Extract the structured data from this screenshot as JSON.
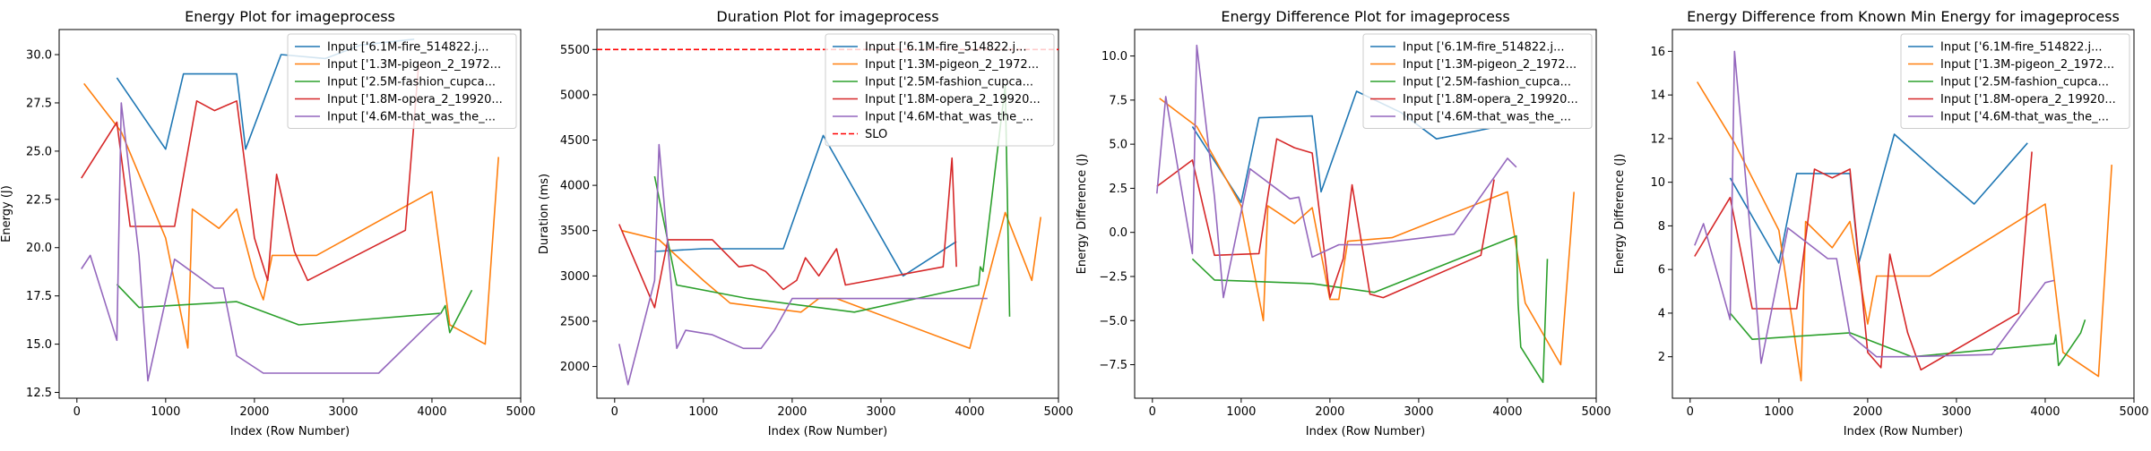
{
  "colors": {
    "series": [
      "#1f77b4",
      "#ff7f0e",
      "#2ca02c",
      "#d62728",
      "#9467bd"
    ],
    "slo": "#ff0000"
  },
  "chart_data": [
    {
      "type": "line",
      "title": "Energy Plot for imageprocess",
      "xlabel": "Index (Row Number)",
      "ylabel": "Energy (J)",
      "xlim": [
        -200,
        5000
      ],
      "ylim": [
        12.2,
        31.3
      ],
      "xticks": [
        0,
        1000,
        2000,
        3000,
        4000,
        5000
      ],
      "xtick_labels": [
        "0",
        "1000",
        "2000",
        "3000",
        "4000",
        "5000"
      ],
      "yticks": [
        12.5,
        15.0,
        17.5,
        20.0,
        22.5,
        25.0,
        27.5,
        30.0
      ],
      "ytick_labels": [
        "12.5",
        "15.0",
        "17.5",
        "20.0",
        "22.5",
        "25.0",
        "27.5",
        "30.0"
      ],
      "legend": "top-right",
      "series": [
        {
          "name": "Input ['6.1M-fire_514822.j...",
          "x": [
            450,
            1000,
            1200,
            1800,
            1900,
            2300,
            2800,
            3200,
            3800
          ],
          "y": [
            28.8,
            25.1,
            29.0,
            29.0,
            25.1,
            30.0,
            29.8,
            30.5,
            30.8
          ]
        },
        {
          "name": "Input ['1.3M-pigeon_2_1972...",
          "x": [
            80,
            500,
            1000,
            1250,
            1300,
            1600,
            1800,
            2000,
            2100,
            2200,
            2700,
            4000,
            4200,
            4600,
            4750
          ],
          "y": [
            28.5,
            26.0,
            20.5,
            14.8,
            22.0,
            21.0,
            22.0,
            18.5,
            17.3,
            19.6,
            19.6,
            22.9,
            16.0,
            15.0,
            24.7
          ]
        },
        {
          "name": "Input ['2.5M-fashion_cupca...",
          "x": [
            450,
            700,
            1800,
            2500,
            4100,
            4150,
            4200,
            4450
          ],
          "y": [
            18.1,
            16.9,
            17.2,
            16.0,
            16.6,
            17.0,
            15.6,
            17.8
          ]
        },
        {
          "name": "Input ['1.8M-opera_2_19920...",
          "x": [
            50,
            450,
            600,
            1100,
            1350,
            1550,
            1800,
            2000,
            2150,
            2250,
            2450,
            2600,
            3700,
            3850
          ],
          "y": [
            23.6,
            26.5,
            21.1,
            21.1,
            27.6,
            27.1,
            27.6,
            20.5,
            18.3,
            23.8,
            19.8,
            18.3,
            20.9,
            29.5
          ]
        },
        {
          "name": "Input ['4.6M-that_was_the_...",
          "x": [
            50,
            150,
            450,
            500,
            700,
            800,
            1100,
            1550,
            1650,
            1800,
            2100,
            2400,
            3400,
            4000,
            4100
          ],
          "y": [
            18.9,
            19.6,
            15.2,
            27.5,
            19.6,
            13.1,
            19.4,
            17.9,
            17.9,
            14.4,
            13.5,
            13.5,
            13.5,
            16.2,
            16.6
          ]
        }
      ]
    },
    {
      "type": "line",
      "title": "Duration Plot for imageprocess",
      "xlabel": "Index (Row Number)",
      "ylabel": "Duration (ms)",
      "xlim": [
        -200,
        5000
      ],
      "ylim": [
        1650,
        5720
      ],
      "xticks": [
        0,
        1000,
        2000,
        3000,
        4000,
        5000
      ],
      "xtick_labels": [
        "0",
        "1000",
        "2000",
        "3000",
        "4000",
        "5000"
      ],
      "yticks": [
        2000,
        2500,
        3000,
        3500,
        4000,
        4500,
        5000,
        5500
      ],
      "ytick_labels": [
        "2000",
        "2500",
        "3000",
        "3500",
        "4000",
        "4500",
        "5000",
        "5500"
      ],
      "legend": "top-right",
      "slo": {
        "name": "SLO",
        "y": 5500
      },
      "series": [
        {
          "name": "Input ['6.1M-fire_514822.j...",
          "x": [
            450,
            1000,
            1900,
            2350,
            3250,
            3850
          ],
          "y": [
            3270,
            3300,
            3300,
            4550,
            3000,
            3380
          ]
        },
        {
          "name": "Input ['1.3M-pigeon_2_1972...",
          "x": [
            80,
            500,
            1000,
            1300,
            1700,
            2100,
            2300,
            2500,
            4000,
            4400,
            4700,
            4800
          ],
          "y": [
            3500,
            3400,
            2950,
            2700,
            2650,
            2600,
            2750,
            2750,
            2200,
            3700,
            2950,
            3650
          ]
        },
        {
          "name": "Input ['2.5M-fashion_cupca...",
          "x": [
            450,
            700,
            1500,
            2700,
            4100,
            4120,
            4150,
            4400,
            4450
          ],
          "y": [
            4100,
            2900,
            2750,
            2600,
            2900,
            3100,
            3050,
            5100,
            2550
          ]
        },
        {
          "name": "Input ['1.8M-opera_2_19920...",
          "x": [
            50,
            450,
            600,
            1100,
            1400,
            1550,
            1700,
            1900,
            2050,
            2150,
            2300,
            2500,
            2600,
            3700,
            3800,
            3850
          ],
          "y": [
            3570,
            2650,
            3400,
            3400,
            3100,
            3120,
            3050,
            2850,
            2950,
            3200,
            3000,
            3300,
            2900,
            3100,
            4300,
            3100
          ]
        },
        {
          "name": "Input ['4.6M-that_was_the_...",
          "x": [
            50,
            150,
            450,
            500,
            700,
            800,
            1100,
            1450,
            1650,
            1800,
            2000,
            2200,
            3400,
            4200
          ],
          "y": [
            2250,
            1800,
            2950,
            4450,
            2200,
            2400,
            2350,
            2200,
            2200,
            2400,
            2750,
            2750,
            2750,
            2750
          ]
        }
      ]
    },
    {
      "type": "line",
      "title": "Energy Difference Plot for imageprocess",
      "xlabel": "Index (Row Number)",
      "ylabel": "Energy Difference (J)",
      "xlim": [
        -200,
        5000
      ],
      "ylim": [
        -9.4,
        11.5
      ],
      "xticks": [
        0,
        1000,
        2000,
        3000,
        4000,
        5000
      ],
      "xtick_labels": [
        "0",
        "1000",
        "2000",
        "3000",
        "4000",
        "5000"
      ],
      "yticks": [
        -7.5,
        -5.0,
        -2.5,
        0.0,
        2.5,
        5.0,
        7.5,
        10.0
      ],
      "ytick_labels": [
        "−7.5",
        "−5.0",
        "−2.5",
        "0.0",
        "2.5",
        "5.0",
        "7.5",
        "10.0"
      ],
      "legend": "top-right",
      "series": [
        {
          "name": "Input ['6.1M-fire_514822.j...",
          "x": [
            450,
            1000,
            1200,
            1800,
            1900,
            2300,
            2800,
            3200,
            3800
          ],
          "y": [
            6.0,
            1.7,
            6.5,
            6.6,
            2.3,
            8.0,
            6.8,
            5.3,
            5.9
          ]
        },
        {
          "name": "Input ['1.3M-pigeon_2_1972...",
          "x": [
            80,
            500,
            1000,
            1250,
            1300,
            1600,
            1800,
            2000,
            2100,
            2200,
            2700,
            4000,
            4200,
            4600,
            4750
          ],
          "y": [
            7.6,
            6.0,
            1.5,
            -5.0,
            1.5,
            0.5,
            1.4,
            -3.8,
            -3.8,
            -0.5,
            -0.3,
            2.3,
            -4.0,
            -7.5,
            2.3
          ]
        },
        {
          "name": "Input ['2.5M-fashion_cupca...",
          "x": [
            450,
            700,
            1800,
            2500,
            4100,
            4120,
            4150,
            4400,
            4450
          ],
          "y": [
            -1.5,
            -2.7,
            -2.9,
            -3.4,
            -0.2,
            -4.0,
            -6.5,
            -8.5,
            -1.5
          ]
        },
        {
          "name": "Input ['1.8M-opera_2_19920...",
          "x": [
            50,
            450,
            700,
            1200,
            1400,
            1600,
            1800,
            2000,
            2150,
            2250,
            2450,
            2600,
            3700,
            3850
          ],
          "y": [
            2.6,
            4.1,
            -1.3,
            -1.2,
            5.3,
            4.8,
            4.5,
            -3.7,
            -1.5,
            2.7,
            -3.5,
            -3.7,
            -1.3,
            3.0
          ]
        },
        {
          "name": "Input ['4.6M-that_was_the_...",
          "x": [
            50,
            150,
            450,
            500,
            700,
            800,
            1100,
            1550,
            1650,
            1800,
            2100,
            2400,
            3400,
            4000,
            4100
          ],
          "y": [
            2.2,
            7.7,
            -1.2,
            10.6,
            2.0,
            -3.7,
            3.6,
            1.9,
            2.0,
            -1.4,
            -0.7,
            -0.7,
            -0.1,
            4.2,
            3.7
          ]
        }
      ]
    },
    {
      "type": "line",
      "title": "Energy Difference from Known Min Energy for imageprocess",
      "xlabel": "Index (Row Number)",
      "ylabel": "Energy Difference (J)",
      "xlim": [
        -200,
        5000
      ],
      "ylim": [
        0.1,
        17.0
      ],
      "xticks": [
        0,
        1000,
        2000,
        3000,
        4000,
        5000
      ],
      "xtick_labels": [
        "0",
        "1000",
        "2000",
        "3000",
        "4000",
        "5000"
      ],
      "yticks": [
        2,
        4,
        6,
        8,
        10,
        12,
        14,
        16
      ],
      "ytick_labels": [
        "2",
        "4",
        "6",
        "8",
        "10",
        "12",
        "14",
        "16"
      ],
      "legend": "top-right",
      "series": [
        {
          "name": "Input ['6.1M-fire_514822.j...",
          "x": [
            450,
            1000,
            1200,
            1800,
            1900,
            2300,
            2800,
            3200,
            3800
          ],
          "y": [
            10.2,
            6.3,
            10.4,
            10.4,
            6.3,
            12.2,
            10.4,
            9.0,
            11.8
          ]
        },
        {
          "name": "Input ['1.3M-pigeon_2_1972...",
          "x": [
            80,
            500,
            1000,
            1250,
            1300,
            1600,
            1800,
            2000,
            2100,
            2200,
            2700,
            4000,
            4200,
            4600,
            4750
          ],
          "y": [
            14.6,
            11.8,
            7.8,
            0.9,
            8.2,
            7.0,
            8.2,
            3.5,
            5.7,
            5.7,
            5.7,
            9.0,
            2.2,
            1.1,
            10.8
          ]
        },
        {
          "name": "Input ['2.5M-fashion_cupca...",
          "x": [
            450,
            700,
            1800,
            2500,
            4100,
            4120,
            4150,
            4400,
            4450
          ],
          "y": [
            4.0,
            2.8,
            3.1,
            2.0,
            2.6,
            3.0,
            1.6,
            3.1,
            3.7
          ]
        },
        {
          "name": "Input ['1.8M-opera_2_19920...",
          "x": [
            50,
            450,
            700,
            1200,
            1400,
            1600,
            1800,
            2000,
            2150,
            2250,
            2450,
            2600,
            3700,
            3850
          ],
          "y": [
            6.6,
            9.3,
            4.2,
            4.2,
            10.6,
            10.2,
            10.6,
            2.2,
            1.5,
            6.7,
            3.1,
            1.4,
            4.0,
            11.4
          ]
        },
        {
          "name": "Input ['4.6M-that_was_the_...",
          "x": [
            50,
            150,
            450,
            500,
            700,
            800,
            1100,
            1550,
            1650,
            1800,
            2100,
            2400,
            3400,
            4000,
            4100
          ],
          "y": [
            7.1,
            8.1,
            3.7,
            16.0,
            6.7,
            1.7,
            7.9,
            6.5,
            6.5,
            3.0,
            2.0,
            2.0,
            2.1,
            5.4,
            5.5
          ]
        }
      ]
    }
  ]
}
